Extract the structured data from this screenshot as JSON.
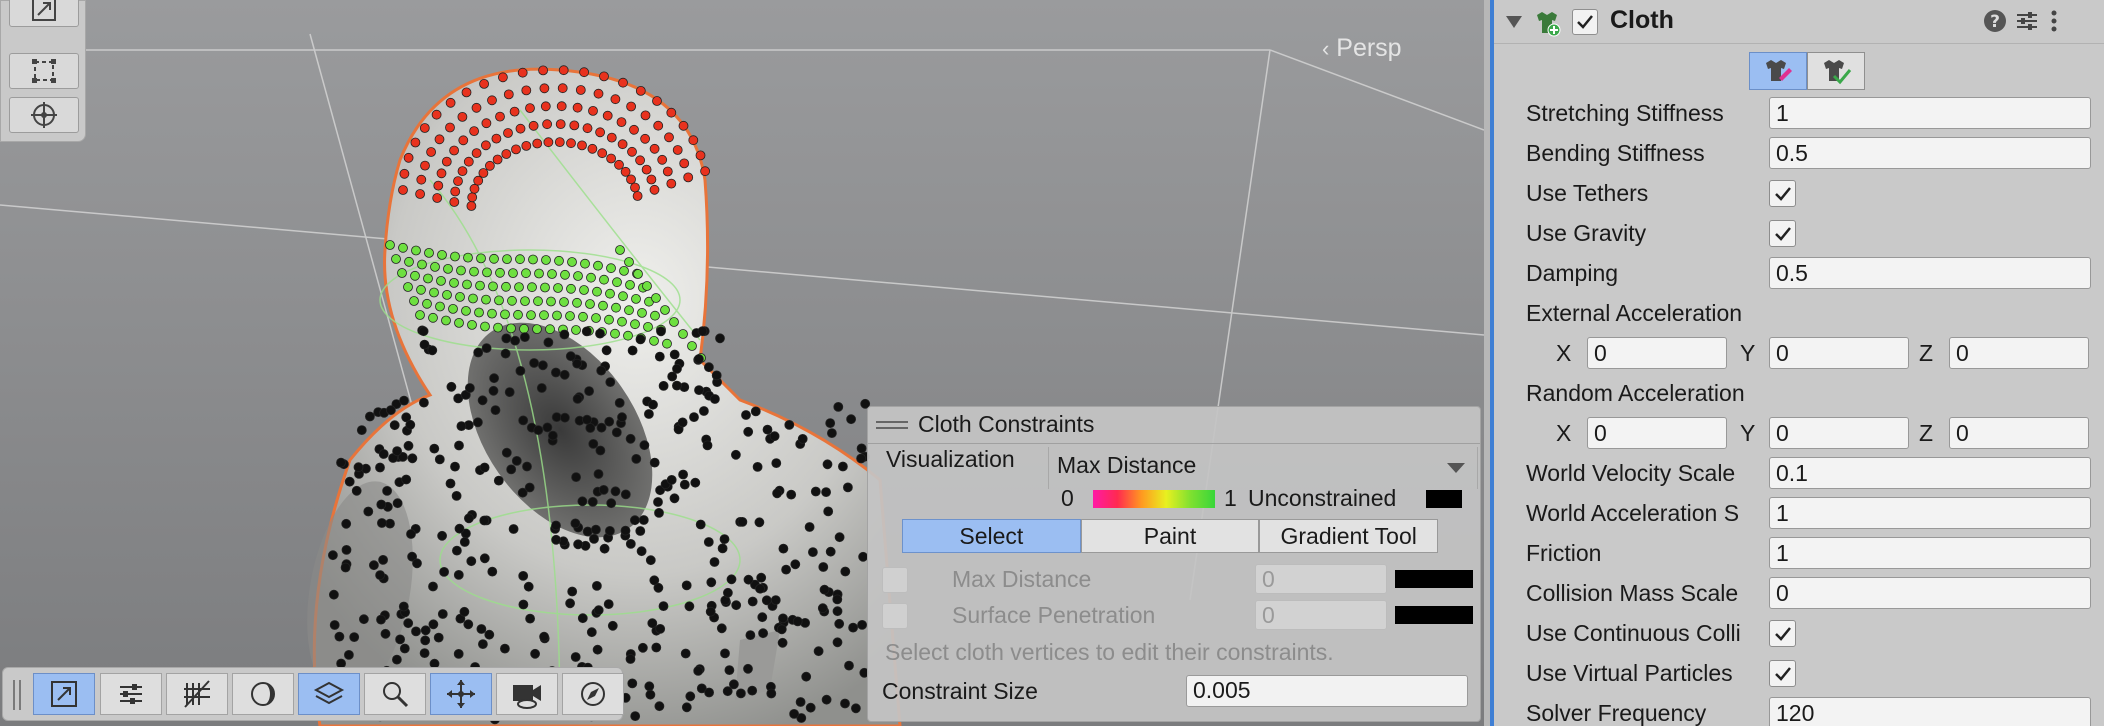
{
  "viewport": {
    "persp_label": "Persp",
    "left_tools": [
      {
        "icon": "scale-tool-icon"
      },
      {
        "icon": "rect-tool-icon"
      },
      {
        "icon": "transform-tool-icon"
      }
    ],
    "bottom_tools": [
      {
        "icon": "move-view-icon",
        "active": true
      },
      {
        "icon": "sliders-icon",
        "active": false
      },
      {
        "icon": "grid-snap-icon",
        "active": false
      },
      {
        "icon": "shading-icon",
        "active": false
      },
      {
        "icon": "layers-icon",
        "active": true
      },
      {
        "icon": "search-icon",
        "active": false
      },
      {
        "icon": "move-gizmo-icon",
        "active": true
      },
      {
        "icon": "camera-icon",
        "active": false
      },
      {
        "icon": "compass-icon",
        "active": false
      }
    ]
  },
  "cloth_constraints": {
    "title": "Cloth Constraints",
    "visualization_label": "Visualization",
    "visualization_value": "Max Distance",
    "gradient_min": "0",
    "gradient_max": "1",
    "unconstrained_label": "Unconstrained",
    "tabs": [
      "Select",
      "Paint",
      "Gradient Tool"
    ],
    "active_tab": "Select",
    "max_distance_label": "Max Distance",
    "max_distance_value": "0",
    "surface_penetration_label": "Surface Penetration",
    "surface_penetration_value": "0",
    "hint": "Select cloth vertices to edit their constraints.",
    "constraint_size_label": "Constraint Size",
    "constraint_size_value": "0.005",
    "colors": {
      "active_tab": "#9bbef2",
      "gradient": [
        "#ff1aa6",
        "#ff2a50",
        "#ff9a20",
        "#e8f020",
        "#38d63a"
      ]
    }
  },
  "inspector": {
    "component_title": "Cloth",
    "component_icon": "cloth-component-icon",
    "rows": [
      {
        "label": "Stretching Stiffness",
        "value": "1"
      },
      {
        "label": "Bending Stiffness",
        "value": "0.5"
      },
      {
        "label": "Use Tethers",
        "checked": true
      },
      {
        "label": "Use Gravity",
        "checked": true
      },
      {
        "label": "Damping",
        "value": "0.5"
      },
      {
        "label": "External Acceleration"
      },
      {
        "label": "Random Acceleration"
      },
      {
        "label": "World Velocity Scale",
        "value": "0.1"
      },
      {
        "label": "World Acceleration S",
        "value": "1"
      },
      {
        "label": "Friction",
        "value": "1"
      },
      {
        "label": "Collision Mass Scale",
        "value": "0"
      },
      {
        "label": "Use Continuous Colli",
        "checked": true
      },
      {
        "label": "Use Virtual Particles",
        "checked": true
      },
      {
        "label": "Solver Frequency",
        "value": "120"
      }
    ],
    "external_acceleration": {
      "x_label": "X",
      "x": "0",
      "y_label": "Y",
      "y": "0",
      "z_label": "Z",
      "z": "0"
    },
    "random_acceleration": {
      "x_label": "X",
      "x": "0",
      "y_label": "Y",
      "y": "0",
      "z_label": "Z",
      "z": "0"
    },
    "colors": {
      "accent": "#3f7fd4"
    }
  }
}
